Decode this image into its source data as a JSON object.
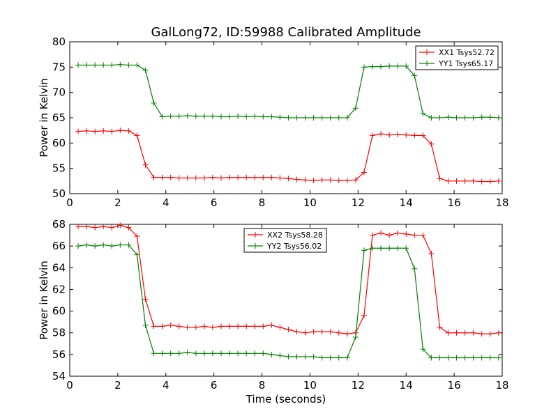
{
  "chart_data": {
    "type": "line",
    "title": "GalLong72, ID:59988 Calibrated Amplitude",
    "xlabel": "Time (seconds)",
    "ylabel": "Power in Kelvin",
    "legend_placement": "top-right / top-center",
    "grid": false,
    "x": [
      0.35,
      0.7,
      1.05,
      1.4,
      1.75,
      2.1,
      2.45,
      2.8,
      3.15,
      3.5,
      3.85,
      4.2,
      4.55,
      4.9,
      5.25,
      5.6,
      5.95,
      6.3,
      6.65,
      7.0,
      7.35,
      7.7,
      8.05,
      8.4,
      8.75,
      9.1,
      9.45,
      9.8,
      10.15,
      10.5,
      10.85,
      11.2,
      11.55,
      11.9,
      12.25,
      12.6,
      12.95,
      13.3,
      13.65,
      14.0,
      14.35,
      14.7,
      15.05,
      15.4,
      15.75,
      16.1,
      16.45,
      16.8,
      17.15,
      17.5,
      17.85
    ],
    "panels": [
      {
        "ylim": [
          50,
          80
        ],
        "xlim": [
          0,
          18
        ],
        "xticks": [
          "0",
          "2",
          "4",
          "6",
          "8",
          "10",
          "12",
          "14",
          "16",
          "18"
        ],
        "yticks": [
          "50",
          "55",
          "60",
          "65",
          "70",
          "75",
          "80"
        ],
        "series": [
          {
            "name": "XX1 Tsys52.72",
            "color": "#ff0000",
            "values": [
              62.3,
              62.4,
              62.3,
              62.4,
              62.3,
              62.5,
              62.4,
              61.5,
              55.7,
              53.2,
              53.2,
              53.2,
              53.1,
              53.1,
              53.1,
              53.1,
              53.2,
              53.1,
              53.2,
              53.2,
              53.2,
              53.2,
              53.2,
              53.2,
              53.1,
              53.0,
              52.8,
              52.7,
              52.6,
              52.7,
              52.7,
              52.6,
              52.6,
              52.7,
              54.2,
              61.5,
              61.8,
              61.6,
              61.7,
              61.6,
              61.5,
              61.5,
              59.8,
              53.0,
              52.5,
              52.5,
              52.5,
              52.5,
              52.4,
              52.4,
              52.5
            ]
          },
          {
            "name": "YY1 Tsys65.17",
            "color": "#008000",
            "values": [
              75.4,
              75.4,
              75.4,
              75.4,
              75.4,
              75.5,
              75.4,
              75.4,
              74.4,
              67.9,
              65.2,
              65.3,
              65.3,
              65.4,
              65.3,
              65.3,
              65.3,
              65.2,
              65.2,
              65.3,
              65.2,
              65.3,
              65.2,
              65.2,
              65.1,
              65.0,
              65.0,
              65.0,
              65.0,
              65.0,
              65.0,
              65.0,
              65.0,
              66.9,
              75.0,
              75.1,
              75.1,
              75.2,
              75.2,
              75.2,
              73.3,
              65.8,
              65.0,
              65.0,
              65.1,
              65.0,
              65.0,
              65.0,
              65.1,
              65.1,
              65.0
            ]
          }
        ]
      },
      {
        "ylim": [
          54,
          68
        ],
        "xlim": [
          0,
          18
        ],
        "xticks": [
          "0",
          "2",
          "4",
          "6",
          "8",
          "10",
          "12",
          "14",
          "16",
          "18"
        ],
        "yticks": [
          "54",
          "56",
          "58",
          "60",
          "62",
          "64",
          "66",
          "68"
        ],
        "series": [
          {
            "name": "XX2 Tsys58.28",
            "color": "#ff0000",
            "values": [
              67.8,
              67.8,
              67.7,
              67.8,
              67.7,
              67.9,
              67.7,
              66.9,
              61.1,
              58.6,
              58.6,
              58.7,
              58.6,
              58.5,
              58.5,
              58.6,
              58.5,
              58.6,
              58.6,
              58.6,
              58.6,
              58.6,
              58.6,
              58.7,
              58.5,
              58.3,
              58.1,
              58.0,
              58.1,
              58.1,
              58.1,
              58.0,
              57.9,
              58.0,
              59.6,
              67.0,
              67.2,
              67.0,
              67.2,
              67.1,
              67.0,
              67.0,
              65.3,
              58.5,
              58.0,
              58.0,
              58.0,
              58.0,
              57.9,
              57.9,
              58.0
            ]
          },
          {
            "name": "YY2 Tsys56.02",
            "color": "#008000",
            "values": [
              66.0,
              66.1,
              66.0,
              66.1,
              66.0,
              66.1,
              66.1,
              65.2,
              58.7,
              56.1,
              56.1,
              56.1,
              56.1,
              56.2,
              56.1,
              56.1,
              56.1,
              56.1,
              56.1,
              56.1,
              56.1,
              56.1,
              56.1,
              56.0,
              55.9,
              55.8,
              55.8,
              55.8,
              55.8,
              55.7,
              55.7,
              55.7,
              55.7,
              57.6,
              65.6,
              65.8,
              65.8,
              65.8,
              65.8,
              65.8,
              63.9,
              56.5,
              55.7,
              55.7,
              55.7,
              55.7,
              55.7,
              55.7,
              55.7,
              55.7,
              55.7
            ]
          }
        ]
      }
    ]
  }
}
